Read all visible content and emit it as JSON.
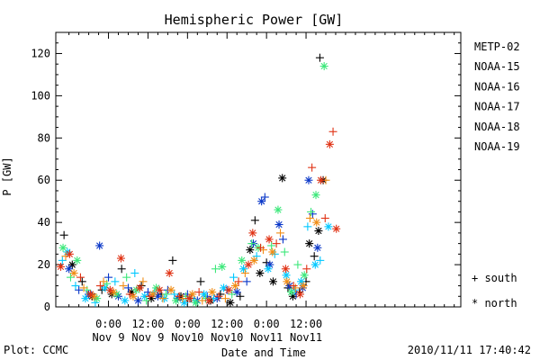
{
  "footer": {
    "credit": "Plot: CCMC",
    "timestamp": "2010/11/11 17:40:42"
  },
  "chart_data": {
    "type": "scatter",
    "title": "Hemispheric Power [GW]",
    "xlabel": "Date and Time",
    "ylabel": "P [GW]",
    "ylim": [
      0,
      130
    ],
    "yticks": [
      0,
      20,
      40,
      60,
      80,
      100,
      120
    ],
    "xlim": [
      -10,
      113
    ],
    "xunit": "hours since 2010-11-08 18:00 UT",
    "xticks": [
      {
        "x": 6,
        "line1": "0:00",
        "line2": "Nov 9"
      },
      {
        "x": 18,
        "line1": "12:00",
        "line2": "Nov 9"
      },
      {
        "x": 30,
        "line1": "0:00",
        "line2": "Nov10"
      },
      {
        "x": 42,
        "line1": "12:00",
        "line2": "Nov10"
      },
      {
        "x": 54,
        "line1": "0:00",
        "line2": "Nov11"
      },
      {
        "x": 66,
        "line1": "12:00",
        "line2": "Nov11"
      }
    ],
    "grid": false,
    "legend_position": "right",
    "marker_legend": [
      {
        "symbol": "+",
        "label": "south"
      },
      {
        "symbol": "*",
        "label": "north"
      }
    ],
    "series": [
      {
        "name": "METP-02",
        "color": "#000000",
        "points": [
          {
            "x": -7.5,
            "y": 34,
            "m": "+"
          },
          {
            "x": -5,
            "y": 20,
            "m": "*"
          },
          {
            "x": -2,
            "y": 12,
            "m": "+"
          },
          {
            "x": 1,
            "y": 5,
            "m": "*"
          },
          {
            "x": 4,
            "y": 8,
            "m": "+"
          },
          {
            "x": 7,
            "y": 6,
            "m": "*"
          },
          {
            "x": 10,
            "y": 18,
            "m": "+"
          },
          {
            "x": 13,
            "y": 7,
            "m": "*"
          },
          {
            "x": 16,
            "y": 10,
            "m": "+"
          },
          {
            "x": 19,
            "y": 4,
            "m": "*"
          },
          {
            "x": 22,
            "y": 6,
            "m": "+"
          },
          {
            "x": 25.5,
            "y": 22,
            "m": "+"
          },
          {
            "x": 28,
            "y": 5,
            "m": "*"
          },
          {
            "x": 31,
            "y": 4,
            "m": "+"
          },
          {
            "x": 34,
            "y": 12,
            "m": "+"
          },
          {
            "x": 37,
            "y": 3,
            "m": "*"
          },
          {
            "x": 40,
            "y": 6,
            "m": "+"
          },
          {
            "x": 43,
            "y": 2,
            "m": "*"
          },
          {
            "x": 46,
            "y": 5,
            "m": "+"
          },
          {
            "x": 49,
            "y": 27,
            "m": "*"
          },
          {
            "x": 50.5,
            "y": 41,
            "m": "+"
          },
          {
            "x": 52,
            "y": 16,
            "m": "*"
          },
          {
            "x": 54,
            "y": 21,
            "m": "+"
          },
          {
            "x": 56,
            "y": 12,
            "m": "*"
          },
          {
            "x": 58.8,
            "y": 61,
            "m": "*"
          },
          {
            "x": 60.5,
            "y": 9,
            "m": "+"
          },
          {
            "x": 62,
            "y": 5,
            "m": "*"
          },
          {
            "x": 64,
            "y": 7,
            "m": "+"
          },
          {
            "x": 66,
            "y": 12,
            "m": "+"
          },
          {
            "x": 67,
            "y": 30,
            "m": "*"
          },
          {
            "x": 68.5,
            "y": 24,
            "m": "+"
          },
          {
            "x": 69.8,
            "y": 36,
            "m": "*"
          },
          {
            "x": 70.2,
            "y": 118,
            "m": "+"
          },
          {
            "x": 71.2,
            "y": 60,
            "m": "*"
          }
        ]
      },
      {
        "name": "NOAA-15",
        "color": "#0a37c8",
        "points": [
          {
            "x": -6,
            "y": 18,
            "m": "*"
          },
          {
            "x": -3,
            "y": 8,
            "m": "+"
          },
          {
            "x": 0,
            "y": 6,
            "m": "*"
          },
          {
            "x": 3.3,
            "y": 29,
            "m": "*"
          },
          {
            "x": 6,
            "y": 14,
            "m": "+"
          },
          {
            "x": 9,
            "y": 5,
            "m": "*"
          },
          {
            "x": 12,
            "y": 9,
            "m": "+"
          },
          {
            "x": 15,
            "y": 3,
            "m": "*"
          },
          {
            "x": 18,
            "y": 7,
            "m": "+"
          },
          {
            "x": 21,
            "y": 5,
            "m": "*"
          },
          {
            "x": 24,
            "y": 8,
            "m": "+"
          },
          {
            "x": 27,
            "y": 4,
            "m": "*"
          },
          {
            "x": 30,
            "y": 6,
            "m": "+"
          },
          {
            "x": 33,
            "y": 3,
            "m": "*"
          },
          {
            "x": 36,
            "y": 5,
            "m": "+"
          },
          {
            "x": 39,
            "y": 4,
            "m": "*"
          },
          {
            "x": 42,
            "y": 8,
            "m": "+"
          },
          {
            "x": 45,
            "y": 7,
            "m": "*"
          },
          {
            "x": 48,
            "y": 12,
            "m": "+"
          },
          {
            "x": 50,
            "y": 30,
            "m": "*"
          },
          {
            "x": 52.5,
            "y": 50,
            "m": "*"
          },
          {
            "x": 53.5,
            "y": 52,
            "m": "+"
          },
          {
            "x": 55,
            "y": 20,
            "m": "*"
          },
          {
            "x": 57.8,
            "y": 39,
            "m": "*"
          },
          {
            "x": 59,
            "y": 32,
            "m": "+"
          },
          {
            "x": 61,
            "y": 10,
            "m": "*"
          },
          {
            "x": 63,
            "y": 6,
            "m": "+"
          },
          {
            "x": 65,
            "y": 9,
            "m": "*"
          },
          {
            "x": 66.8,
            "y": 60,
            "m": "*"
          },
          {
            "x": 68,
            "y": 44,
            "m": "+"
          },
          {
            "x": 69.5,
            "y": 28,
            "m": "*"
          }
        ]
      },
      {
        "name": "NOAA-16",
        "color": "#00c8ff",
        "points": [
          {
            "x": -8,
            "y": 22,
            "m": "+"
          },
          {
            "x": -6.5,
            "y": 26,
            "m": "*"
          },
          {
            "x": -4,
            "y": 10,
            "m": "+"
          },
          {
            "x": -1,
            "y": 4,
            "m": "*"
          },
          {
            "x": 2,
            "y": 2,
            "m": "+"
          },
          {
            "x": 5,
            "y": 9,
            "m": "*"
          },
          {
            "x": 8,
            "y": 12,
            "m": "+"
          },
          {
            "x": 11,
            "y": 3,
            "m": "*"
          },
          {
            "x": 14,
            "y": 16,
            "m": "+"
          },
          {
            "x": 17,
            "y": 5,
            "m": "*"
          },
          {
            "x": 20,
            "y": 7,
            "m": "+"
          },
          {
            "x": 23,
            "y": 4,
            "m": "*"
          },
          {
            "x": 26,
            "y": 6,
            "m": "+"
          },
          {
            "x": 29,
            "y": 2,
            "m": "*"
          },
          {
            "x": 32,
            "y": 3,
            "m": "+"
          },
          {
            "x": 35,
            "y": 6,
            "m": "*"
          },
          {
            "x": 38,
            "y": 4,
            "m": "+"
          },
          {
            "x": 41,
            "y": 9,
            "m": "*"
          },
          {
            "x": 44,
            "y": 14,
            "m": "+"
          },
          {
            "x": 47,
            "y": 18,
            "m": "*"
          },
          {
            "x": 51,
            "y": 24,
            "m": "+"
          },
          {
            "x": 54.5,
            "y": 18,
            "m": "*"
          },
          {
            "x": 56.5,
            "y": 25,
            "m": "+"
          },
          {
            "x": 60,
            "y": 15,
            "m": "*"
          },
          {
            "x": 62.5,
            "y": 8,
            "m": "+"
          },
          {
            "x": 64.5,
            "y": 12,
            "m": "*"
          },
          {
            "x": 66.5,
            "y": 38,
            "m": "+"
          },
          {
            "x": 68.8,
            "y": 20,
            "m": "*"
          },
          {
            "x": 70.3,
            "y": 22,
            "m": "+"
          },
          {
            "x": 72.8,
            "y": 38,
            "m": "*"
          }
        ]
      },
      {
        "name": "NOAA-17",
        "color": "#3ce87a",
        "points": [
          {
            "x": -7.8,
            "y": 28,
            "m": "*"
          },
          {
            "x": -5.5,
            "y": 14,
            "m": "+"
          },
          {
            "x": -3.5,
            "y": 22,
            "m": "*"
          },
          {
            "x": -0.5,
            "y": 8,
            "m": "+"
          },
          {
            "x": 2.5,
            "y": 4,
            "m": "*"
          },
          {
            "x": 5.5,
            "y": 11,
            "m": "+"
          },
          {
            "x": 8.5,
            "y": 6,
            "m": "*"
          },
          {
            "x": 11.5,
            "y": 14,
            "m": "+"
          },
          {
            "x": 14.5,
            "y": 8,
            "m": "*"
          },
          {
            "x": 17.5,
            "y": 3,
            "m": "+"
          },
          {
            "x": 20.5,
            "y": 9,
            "m": "*"
          },
          {
            "x": 23.5,
            "y": 6,
            "m": "+"
          },
          {
            "x": 26.5,
            "y": 3,
            "m": "*"
          },
          {
            "x": 29.5,
            "y": 5,
            "m": "+"
          },
          {
            "x": 32.5,
            "y": 2,
            "m": "*"
          },
          {
            "x": 35.5,
            "y": 4,
            "m": "+"
          },
          {
            "x": 38.5,
            "y": 18,
            "m": "+"
          },
          {
            "x": 40.5,
            "y": 19,
            "m": "*"
          },
          {
            "x": 43.5,
            "y": 6,
            "m": "+"
          },
          {
            "x": 46.5,
            "y": 22,
            "m": "*"
          },
          {
            "x": 49.5,
            "y": 30,
            "m": "+"
          },
          {
            "x": 51.5,
            "y": 28,
            "m": "*"
          },
          {
            "x": 55.5,
            "y": 29,
            "m": "+"
          },
          {
            "x": 57.5,
            "y": 46,
            "m": "*"
          },
          {
            "x": 59.5,
            "y": 26,
            "m": "+"
          },
          {
            "x": 61.5,
            "y": 7,
            "m": "*"
          },
          {
            "x": 63.5,
            "y": 20,
            "m": "+"
          },
          {
            "x": 65.5,
            "y": 15,
            "m": "*"
          },
          {
            "x": 67.5,
            "y": 45,
            "m": "+"
          },
          {
            "x": 69,
            "y": 53,
            "m": "*"
          },
          {
            "x": 71.5,
            "y": 114,
            "m": "*"
          }
        ]
      },
      {
        "name": "NOAA-18",
        "color": "#f08c14",
        "points": [
          {
            "x": -7,
            "y": 24,
            "m": "+"
          },
          {
            "x": -4.5,
            "y": 16,
            "m": "*"
          },
          {
            "x": -1.5,
            "y": 9,
            "m": "+"
          },
          {
            "x": 1.5,
            "y": 5,
            "m": "*"
          },
          {
            "x": 4.5,
            "y": 12,
            "m": "+"
          },
          {
            "x": 7.5,
            "y": 7,
            "m": "*"
          },
          {
            "x": 10.5,
            "y": 10,
            "m": "+"
          },
          {
            "x": 13.5,
            "y": 5,
            "m": "*"
          },
          {
            "x": 16.5,
            "y": 12,
            "m": "+"
          },
          {
            "x": 19.5,
            "y": 6,
            "m": "*"
          },
          {
            "x": 22.5,
            "y": 4,
            "m": "+"
          },
          {
            "x": 25,
            "y": 8,
            "m": "*"
          },
          {
            "x": 28.5,
            "y": 4,
            "m": "+"
          },
          {
            "x": 31.5,
            "y": 6,
            "m": "*"
          },
          {
            "x": 34.5,
            "y": 3,
            "m": "+"
          },
          {
            "x": 37.5,
            "y": 7,
            "m": "*"
          },
          {
            "x": 41.5,
            "y": 4,
            "m": "+"
          },
          {
            "x": 44.5,
            "y": 10,
            "m": "*"
          },
          {
            "x": 47.5,
            "y": 16,
            "m": "+"
          },
          {
            "x": 50.2,
            "y": 22,
            "m": "*"
          },
          {
            "x": 53,
            "y": 27,
            "m": "+"
          },
          {
            "x": 55.8,
            "y": 26,
            "m": "*"
          },
          {
            "x": 58.2,
            "y": 35,
            "m": "+"
          },
          {
            "x": 60.2,
            "y": 12,
            "m": "*"
          },
          {
            "x": 62.8,
            "y": 9,
            "m": "+"
          },
          {
            "x": 65.2,
            "y": 10,
            "m": "*"
          },
          {
            "x": 67.2,
            "y": 42,
            "m": "+"
          },
          {
            "x": 69.2,
            "y": 40,
            "m": "*"
          },
          {
            "x": 72,
            "y": 60,
            "m": "+"
          }
        ]
      },
      {
        "name": "NOAA-19",
        "color": "#e03214",
        "points": [
          {
            "x": -8.5,
            "y": 19,
            "m": "*"
          },
          {
            "x": -5.8,
            "y": 25,
            "m": "*"
          },
          {
            "x": -2.5,
            "y": 14,
            "m": "+"
          },
          {
            "x": 0.5,
            "y": 6,
            "m": "*"
          },
          {
            "x": 3.5,
            "y": 10,
            "m": "+"
          },
          {
            "x": 6.5,
            "y": 8,
            "m": "*"
          },
          {
            "x": 9.8,
            "y": 23,
            "m": "*"
          },
          {
            "x": 12.5,
            "y": 6,
            "m": "+"
          },
          {
            "x": 15.5,
            "y": 9,
            "m": "*"
          },
          {
            "x": 18.5,
            "y": 5,
            "m": "+"
          },
          {
            "x": 21.5,
            "y": 8,
            "m": "*"
          },
          {
            "x": 24.5,
            "y": 16,
            "m": "*"
          },
          {
            "x": 27.5,
            "y": 5,
            "m": "+"
          },
          {
            "x": 30.5,
            "y": 4,
            "m": "*"
          },
          {
            "x": 33.5,
            "y": 7,
            "m": "+"
          },
          {
            "x": 36.5,
            "y": 3,
            "m": "*"
          },
          {
            "x": 39.5,
            "y": 5,
            "m": "+"
          },
          {
            "x": 42.5,
            "y": 8,
            "m": "*"
          },
          {
            "x": 45.5,
            "y": 12,
            "m": "+"
          },
          {
            "x": 48.5,
            "y": 20,
            "m": "*"
          },
          {
            "x": 49.8,
            "y": 35,
            "m": "*"
          },
          {
            "x": 52.2,
            "y": 28,
            "m": "+"
          },
          {
            "x": 54.8,
            "y": 32,
            "m": "*"
          },
          {
            "x": 57,
            "y": 30,
            "m": "+"
          },
          {
            "x": 59.8,
            "y": 18,
            "m": "*"
          },
          {
            "x": 62.2,
            "y": 10,
            "m": "+"
          },
          {
            "x": 64.2,
            "y": 6,
            "m": "*"
          },
          {
            "x": 66.2,
            "y": 18,
            "m": "+"
          },
          {
            "x": 67.8,
            "y": 66,
            "m": "+"
          },
          {
            "x": 70.5,
            "y": 60,
            "m": "*"
          },
          {
            "x": 71.8,
            "y": 42,
            "m": "+"
          },
          {
            "x": 73.2,
            "y": 77,
            "m": "*"
          },
          {
            "x": 74.2,
            "y": 83,
            "m": "+"
          },
          {
            "x": 75.2,
            "y": 37,
            "m": "*"
          }
        ]
      }
    ]
  }
}
